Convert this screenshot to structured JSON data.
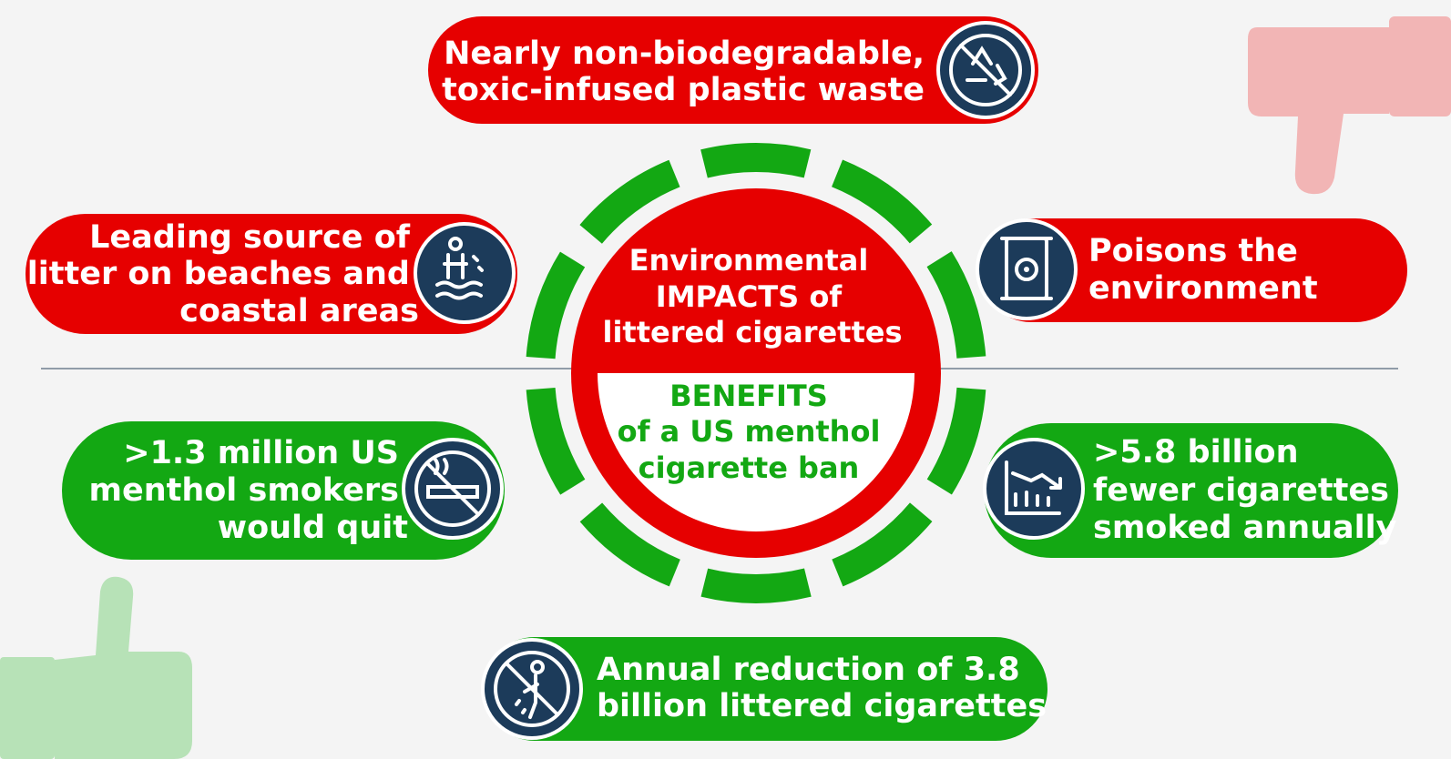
{
  "center": {
    "impacts": [
      "Environmental",
      "IMPACTS of",
      "littered cigarettes"
    ],
    "benefits": [
      "BENEFITS",
      "of a US menthol",
      "cigarette ban"
    ]
  },
  "impacts": [
    {
      "lines": [
        "Nearly non-biodegradable,",
        "toxic-infused plastic waste"
      ]
    },
    {
      "lines": [
        "Leading source of",
        "litter on beaches and",
        "coastal areas"
      ]
    },
    {
      "lines": [
        "Poisons the",
        "environment"
      ]
    }
  ],
  "benefits": [
    {
      "lines": [
        ">1.3 million US",
        "menthol smokers",
        "would quit"
      ]
    },
    {
      "lines": [
        ">5.8 billion",
        "fewer cigarettes",
        "smoked annually"
      ]
    },
    {
      "lines": [
        "Annual reduction of 3.8",
        "billion littered cigarettes"
      ]
    }
  ]
}
